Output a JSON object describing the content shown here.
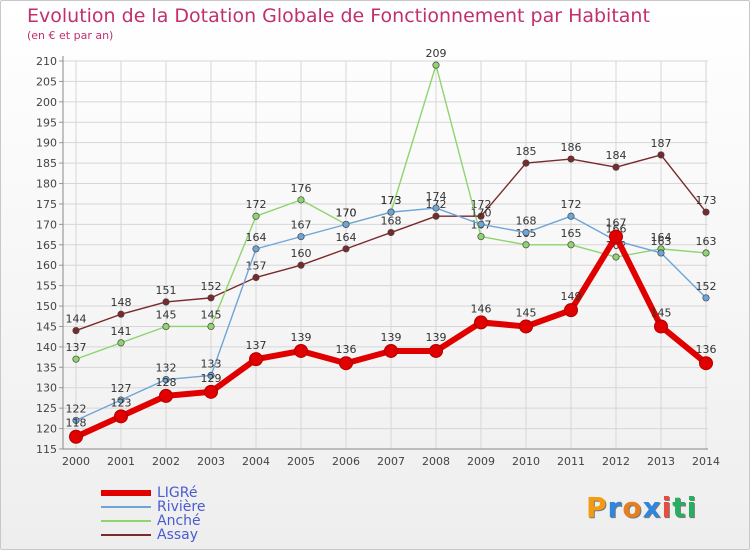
{
  "title": "Evolution de la Dotation Globale de Fonctionnement par Habitant",
  "subtitle": "(en € et par an)",
  "brand": {
    "letters": [
      "P",
      "r",
      "o",
      "x",
      "i",
      "t",
      "i"
    ],
    "colors": [
      "#f39c12",
      "#2e86de",
      "#e67e22",
      "#2e86de",
      "#e74c3c",
      "#27ae60",
      "#27ae60"
    ]
  },
  "chart_data": {
    "type": "line",
    "x": [
      "2000",
      "2001",
      "2002",
      "2003",
      "2004",
      "2005",
      "2006",
      "2007",
      "2008",
      "2009",
      "2010",
      "2011",
      "2012",
      "2013",
      "2014"
    ],
    "ylim": [
      115,
      210
    ],
    "yticks": [
      115,
      120,
      125,
      130,
      135,
      140,
      145,
      150,
      155,
      160,
      165,
      170,
      175,
      180,
      185,
      190,
      195,
      200,
      205,
      210
    ],
    "grid": true,
    "series": [
      {
        "name": "LIGRé",
        "color": "#e00000",
        "values": [
          118,
          123,
          128,
          129,
          137,
          139,
          136,
          139,
          139,
          146,
          145,
          149,
          167,
          145,
          136
        ]
      },
      {
        "name": "Rivière",
        "color": "#6ea5d8",
        "values": [
          122,
          127,
          132,
          133,
          164,
          167,
          170,
          173,
          174,
          170,
          168,
          172,
          166,
          163,
          152
        ]
      },
      {
        "name": "Anché",
        "color": "#8fd46e",
        "values": [
          137,
          141,
          145,
          145,
          172,
          176,
          170,
          173,
          209,
          167,
          165,
          165,
          162,
          164,
          163
        ]
      },
      {
        "name": "Assay",
        "color": "#7a2a2a",
        "values": [
          144,
          148,
          151,
          152,
          157,
          160,
          164,
          168,
          172,
          172,
          185,
          186,
          184,
          187,
          173
        ]
      }
    ]
  }
}
